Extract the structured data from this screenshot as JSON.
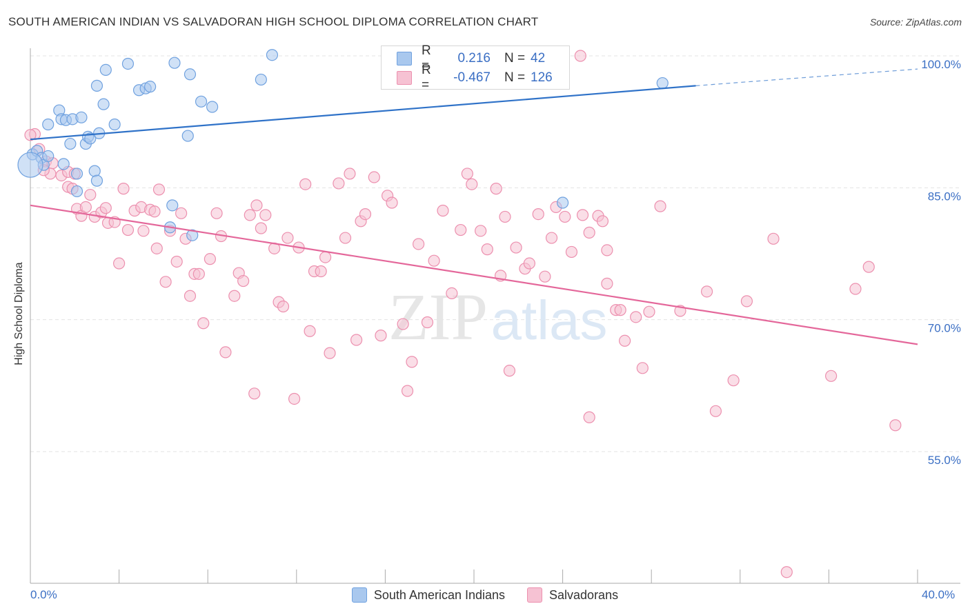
{
  "title": "SOUTH AMERICAN INDIAN VS SALVADORAN HIGH SCHOOL DIPLOMA CORRELATION CHART",
  "source": "Source: ZipAtlas.com",
  "watermark": {
    "zip": "ZIP",
    "atlas": "atlas"
  },
  "colors": {
    "blue": "#6fa1df",
    "blue_fill": "#a9c8ee",
    "blue_line": "#2f72c8",
    "pink": "#ec8fae",
    "pink_fill": "#f6c2d3",
    "pink_line": "#e4679a",
    "axis_text": "#3b6fc4",
    "grid": "#e3e3e3"
  },
  "legend": {
    "blue": {
      "r_label": "R =",
      "r_value": "0.216",
      "n_label": "N =",
      "n_value": "42"
    },
    "pink": {
      "r_label": "R =",
      "r_value": "-0.467",
      "n_label": "N =",
      "n_value": "126"
    }
  },
  "bottom_legend": [
    "South American Indians",
    "Salvadorans"
  ],
  "chart_data": {
    "type": "scatter",
    "title": "SOUTH AMERICAN INDIAN VS SALVADORAN HIGH SCHOOL DIPLOMA CORRELATION CHART",
    "xlabel": "",
    "ylabel": "High School Diploma",
    "xlim": [
      0,
      40
    ],
    "ylim": [
      40,
      102
    ],
    "x_tick_labels": [
      "0.0%",
      "40.0%"
    ],
    "y_ticks": [
      55,
      70,
      85,
      100
    ],
    "y_tick_labels": [
      "55.0%",
      "70.0%",
      "85.0%",
      "100.0%"
    ],
    "grid": true,
    "series": [
      {
        "name": "South American Indians",
        "color": "#6fa1df",
        "trend": {
          "x": [
            0,
            30
          ],
          "y": [
            90.5,
            96.6
          ],
          "dashed_to": [
            40,
            98.5
          ]
        },
        "points": [
          [
            0.1,
            88.8
          ],
          [
            0.3,
            89.2
          ],
          [
            0.5,
            88.4
          ],
          [
            0.6,
            87.6
          ],
          [
            0.8,
            88.6
          ],
          [
            0.8,
            92.2
          ],
          [
            1.3,
            93.8
          ],
          [
            1.4,
            92.8
          ],
          [
            1.6,
            92.7
          ],
          [
            1.9,
            92.8
          ],
          [
            2.3,
            93.0
          ],
          [
            1.8,
            90.0
          ],
          [
            2.1,
            86.6
          ],
          [
            2.1,
            84.6
          ],
          [
            2.5,
            90.0
          ],
          [
            2.6,
            90.8
          ],
          [
            2.7,
            90.6
          ],
          [
            3.0,
            96.6
          ],
          [
            3.4,
            98.4
          ],
          [
            3.3,
            94.5
          ],
          [
            3.8,
            92.2
          ],
          [
            4.4,
            99.1
          ],
          [
            4.9,
            96.1
          ],
          [
            5.2,
            96.3
          ],
          [
            5.4,
            96.5
          ],
          [
            6.4,
            83.0
          ],
          [
            6.3,
            80.5
          ],
          [
            6.5,
            99.2
          ],
          [
            7.1,
            90.9
          ],
          [
            7.2,
            97.9
          ],
          [
            7.3,
            79.6
          ],
          [
            7.7,
            94.8
          ],
          [
            8.2,
            94.2
          ],
          [
            10.4,
            97.3
          ],
          [
            10.9,
            100.1
          ],
          [
            2.9,
            86.9
          ],
          [
            3.0,
            85.8
          ],
          [
            3.1,
            91.2
          ],
          [
            0.0,
            87.6
          ],
          [
            1.5,
            87.7
          ],
          [
            24.0,
            83.3
          ],
          [
            28.5,
            96.9
          ]
        ],
        "sizes": {
          "0.0,87.6": "large"
        }
      },
      {
        "name": "Salvadorans",
        "color": "#ec8fae",
        "trend": {
          "x": [
            0,
            40
          ],
          "y": [
            83.0,
            67.2
          ]
        },
        "points": [
          [
            0.2,
            91.1
          ],
          [
            0.4,
            89.4
          ],
          [
            0.7,
            88.0
          ],
          [
            1.0,
            87.8
          ],
          [
            0.9,
            86.6
          ],
          [
            1.4,
            86.4
          ],
          [
            1.7,
            86.8
          ],
          [
            1.7,
            85.1
          ],
          [
            1.9,
            84.9
          ],
          [
            2.0,
            86.6
          ],
          [
            2.1,
            82.6
          ],
          [
            2.3,
            81.8
          ],
          [
            2.5,
            82.8
          ],
          [
            2.7,
            84.2
          ],
          [
            2.9,
            81.7
          ],
          [
            3.2,
            82.2
          ],
          [
            3.4,
            82.7
          ],
          [
            3.5,
            81.0
          ],
          [
            3.8,
            81.1
          ],
          [
            4.0,
            76.4
          ],
          [
            4.2,
            84.9
          ],
          [
            4.4,
            80.2
          ],
          [
            4.7,
            82.4
          ],
          [
            5.0,
            82.8
          ],
          [
            5.1,
            80.1
          ],
          [
            5.4,
            82.5
          ],
          [
            5.6,
            82.3
          ],
          [
            5.7,
            78.1
          ],
          [
            5.8,
            84.8
          ],
          [
            6.1,
            74.3
          ],
          [
            6.3,
            80.1
          ],
          [
            6.6,
            76.6
          ],
          [
            6.8,
            82.1
          ],
          [
            7.0,
            79.2
          ],
          [
            7.2,
            72.7
          ],
          [
            7.4,
            75.2
          ],
          [
            7.6,
            75.2
          ],
          [
            7.8,
            69.6
          ],
          [
            8.1,
            76.9
          ],
          [
            8.4,
            82.1
          ],
          [
            8.6,
            79.5
          ],
          [
            8.8,
            66.3
          ],
          [
            9.2,
            72.7
          ],
          [
            9.4,
            75.3
          ],
          [
            9.6,
            74.4
          ],
          [
            9.9,
            81.9
          ],
          [
            10.1,
            61.6
          ],
          [
            10.2,
            83.0
          ],
          [
            10.4,
            80.4
          ],
          [
            10.6,
            81.9
          ],
          [
            11.0,
            78.1
          ],
          [
            11.2,
            72.0
          ],
          [
            11.4,
            71.5
          ],
          [
            11.6,
            79.3
          ],
          [
            11.9,
            61.0
          ],
          [
            12.1,
            78.2
          ],
          [
            12.4,
            85.4
          ],
          [
            12.6,
            68.7
          ],
          [
            12.8,
            75.5
          ],
          [
            13.1,
            75.5
          ],
          [
            13.3,
            77.1
          ],
          [
            13.5,
            66.2
          ],
          [
            13.9,
            85.5
          ],
          [
            14.2,
            79.3
          ],
          [
            14.4,
            86.6
          ],
          [
            14.7,
            67.7
          ],
          [
            14.9,
            81.2
          ],
          [
            15.1,
            82.0
          ],
          [
            15.5,
            86.2
          ],
          [
            15.8,
            68.2
          ],
          [
            16.1,
            84.1
          ],
          [
            16.3,
            83.3
          ],
          [
            16.8,
            69.5
          ],
          [
            17.0,
            61.9
          ],
          [
            17.2,
            65.2
          ],
          [
            17.5,
            78.6
          ],
          [
            17.9,
            69.7
          ],
          [
            18.2,
            76.7
          ],
          [
            18.6,
            82.4
          ],
          [
            19.0,
            73.0
          ],
          [
            19.4,
            80.2
          ],
          [
            19.7,
            86.6
          ],
          [
            19.9,
            85.4
          ],
          [
            20.3,
            80.1
          ],
          [
            20.6,
            78.0
          ],
          [
            21.0,
            84.9
          ],
          [
            21.2,
            75.0
          ],
          [
            21.4,
            81.7
          ],
          [
            21.6,
            64.2
          ],
          [
            21.9,
            78.2
          ],
          [
            22.3,
            75.8
          ],
          [
            22.5,
            76.4
          ],
          [
            22.9,
            82.0
          ],
          [
            23.2,
            74.9
          ],
          [
            23.5,
            79.3
          ],
          [
            23.7,
            82.8
          ],
          [
            24.1,
            81.7
          ],
          [
            24.4,
            77.7
          ],
          [
            24.9,
            81.9
          ],
          [
            25.2,
            79.9
          ],
          [
            25.6,
            81.8
          ],
          [
            25.8,
            81.2
          ],
          [
            26.0,
            77.9
          ],
          [
            24.8,
            100.0
          ],
          [
            25.2,
            58.9
          ],
          [
            26.0,
            74.1
          ],
          [
            26.4,
            71.1
          ],
          [
            26.6,
            71.1
          ],
          [
            26.8,
            67.6
          ],
          [
            27.3,
            70.3
          ],
          [
            27.6,
            64.5
          ],
          [
            27.9,
            70.9
          ],
          [
            28.4,
            82.9
          ],
          [
            29.3,
            71.0
          ],
          [
            30.5,
            73.2
          ],
          [
            30.9,
            59.6
          ],
          [
            31.7,
            63.1
          ],
          [
            32.3,
            72.1
          ],
          [
            33.5,
            79.2
          ],
          [
            34.1,
            41.3
          ],
          [
            36.1,
            63.6
          ],
          [
            37.2,
            73.5
          ],
          [
            37.8,
            76.0
          ],
          [
            39.0,
            58.0
          ],
          [
            0.0,
            91.0
          ],
          [
            0.6,
            87.0
          ]
        ]
      }
    ]
  }
}
